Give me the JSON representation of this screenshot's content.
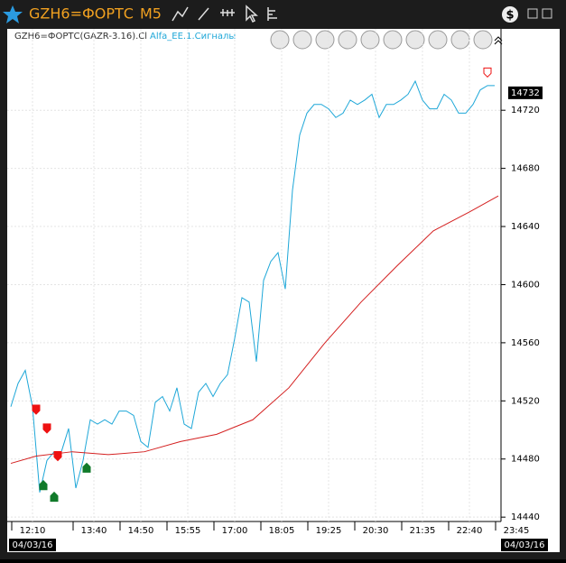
{
  "window": {
    "symbol": "GZH6=ФОРТС",
    "timeframe": "M5"
  },
  "chart_data": {
    "type": "line",
    "title": "GZH6=ФОРТС(GAZR-3.16).Cl",
    "subtitle": "Alfa_EE.1.Сигналы",
    "last_price": 14732,
    "start_date": "04/03/16",
    "end_date": "04/03/16",
    "xlim": [
      0,
      140
    ],
    "xticks": [
      {
        "value": 6,
        "label": "12:10"
      },
      {
        "value": 23,
        "label": "13:40"
      },
      {
        "value": 36,
        "label": "14:50"
      },
      {
        "value": 49,
        "label": "15:55"
      },
      {
        "value": 62,
        "label": "17:00"
      },
      {
        "value": 75,
        "label": "18:05"
      },
      {
        "value": 88,
        "label": "19:25"
      },
      {
        "value": 101,
        "label": "20:30"
      },
      {
        "value": 114,
        "label": "21:35"
      },
      {
        "value": 127,
        "label": "22:40"
      },
      {
        "value": 140,
        "label": "23:45"
      }
    ],
    "ylim": [
      14437,
      14776
    ],
    "yticks": [
      14440,
      14480,
      14520,
      14560,
      14600,
      14640,
      14680,
      14720
    ],
    "grid": true,
    "series": [
      {
        "color": "#1ea7d8",
        "x": [
          0,
          2,
          4,
          6,
          8,
          10,
          12,
          14,
          16,
          18,
          20,
          22,
          24,
          26,
          28,
          30,
          32,
          34,
          36,
          38,
          40,
          42,
          44,
          46,
          48,
          50,
          52,
          54,
          56,
          58,
          60,
          62,
          64,
          66,
          68,
          70,
          72,
          74,
          76,
          78,
          80,
          82,
          84,
          86,
          88,
          90,
          92,
          94,
          96,
          98,
          100,
          102,
          104,
          106,
          108,
          110,
          112,
          114,
          116,
          118,
          120,
          122,
          124,
          126,
          128,
          130,
          132,
          134
        ],
        "values": [
          14516,
          14532,
          14541,
          14516,
          14457,
          14479,
          14485,
          14485,
          14501,
          14460,
          14479,
          14507,
          14504,
          14507,
          14504,
          14513,
          14513,
          14510,
          14492,
          14488,
          14519,
          14523,
          14513,
          14529,
          14504,
          14501,
          14526,
          14532,
          14523,
          14532,
          14538,
          14563,
          14591,
          14588,
          14547,
          14603,
          14616,
          14622,
          14597,
          14665,
          14703,
          14718,
          14724,
          14724,
          14721,
          14715,
          14718,
          14727,
          14724,
          14727,
          14731,
          14715,
          14724,
          14724,
          14727,
          14731,
          14740,
          14727,
          14721,
          14721,
          14731,
          14727,
          14718,
          14718,
          14724,
          14734,
          14737,
          14737
        ]
      },
      {
        "color": "#d42020",
        "x": [
          0,
          7,
          17,
          27,
          37,
          47,
          57,
          67,
          77,
          87,
          97,
          107,
          117,
          127,
          135
        ],
        "values": [
          14477,
          14482,
          14485,
          14483,
          14485,
          14492,
          14497,
          14507,
          14529,
          14560,
          14588,
          14613,
          14637,
          14650,
          14661
        ]
      }
    ],
    "markers": [
      {
        "color": "#ee1111",
        "x": [
          7,
          10,
          13,
          132
        ],
        "values": [
          14514,
          14501,
          14482,
          14746
        ]
      },
      {
        "color": "#117a2a",
        "x": [
          9,
          12,
          21
        ],
        "values": [
          14462,
          14454,
          14474
        ]
      }
    ]
  }
}
